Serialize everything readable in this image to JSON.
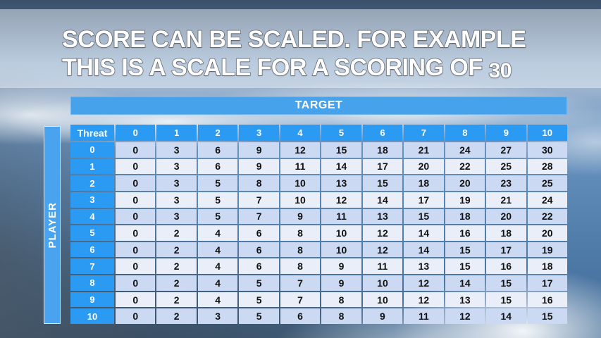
{
  "title": {
    "line1": "SCORE CAN BE SCALED. FOR EXAMPLE",
    "line2_prefix": "THIS IS A SCALE FOR A SCORING OF",
    "line2_number": "30"
  },
  "table": {
    "target_label": "TARGET",
    "player_label": "PLAYER",
    "corner_label": "Threat",
    "col_headers": [
      "0",
      "1",
      "2",
      "3",
      "4",
      "5",
      "6",
      "7",
      "8",
      "9",
      "10"
    ],
    "rows": [
      {
        "label": "0",
        "values": [
          0,
          3,
          6,
          9,
          12,
          15,
          18,
          21,
          24,
          27,
          30
        ]
      },
      {
        "label": "1",
        "values": [
          0,
          3,
          6,
          9,
          11,
          14,
          17,
          20,
          22,
          25,
          28
        ]
      },
      {
        "label": "2",
        "values": [
          0,
          3,
          5,
          8,
          10,
          13,
          15,
          18,
          20,
          23,
          25
        ]
      },
      {
        "label": "3",
        "values": [
          0,
          3,
          5,
          7,
          10,
          12,
          14,
          17,
          19,
          21,
          24
        ]
      },
      {
        "label": "4",
        "values": [
          0,
          3,
          5,
          7,
          9,
          11,
          13,
          15,
          18,
          20,
          22
        ]
      },
      {
        "label": "5",
        "values": [
          0,
          2,
          4,
          6,
          8,
          10,
          12,
          14,
          16,
          18,
          20
        ]
      },
      {
        "label": "6",
        "values": [
          0,
          2,
          4,
          6,
          8,
          10,
          12,
          14,
          15,
          17,
          19
        ]
      },
      {
        "label": "7",
        "values": [
          0,
          2,
          4,
          6,
          8,
          9,
          11,
          13,
          15,
          16,
          18
        ]
      },
      {
        "label": "8",
        "values": [
          0,
          2,
          4,
          5,
          7,
          9,
          10,
          12,
          14,
          15,
          17
        ]
      },
      {
        "label": "9",
        "values": [
          0,
          2,
          4,
          5,
          7,
          8,
          10,
          12,
          13,
          15,
          16
        ]
      },
      {
        "label": "10",
        "values": [
          0,
          2,
          3,
          5,
          6,
          8,
          9,
          11,
          12,
          14,
          15
        ]
      }
    ]
  },
  "colors": {
    "header_blue": "#2b9af2",
    "target_bar_blue": "#47a2ec",
    "player_bar_blue": "#49a3ef",
    "row_band_dark": "#cbd9f2",
    "row_band_light": "#e9eef9",
    "title_text": "#ffffff",
    "title_outline": "#64666b"
  }
}
